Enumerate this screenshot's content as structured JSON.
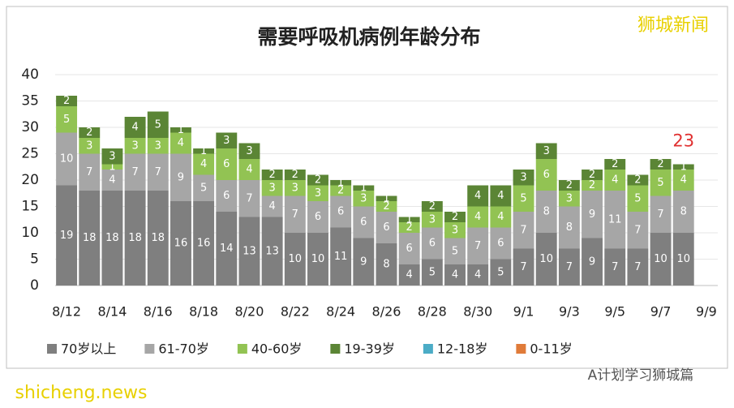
{
  "chart_data": {
    "type": "stacked_bar",
    "title": "需要呼吸机病例年龄分布",
    "categories": [
      "8/12",
      null,
      "8/14",
      null,
      "8/16",
      null,
      "8/18",
      null,
      "8/20",
      null,
      "8/22",
      null,
      "8/24",
      null,
      "8/26",
      null,
      "8/28",
      null,
      "8/30",
      null,
      "9/1",
      null,
      "9/3",
      null,
      "9/5",
      null,
      "9/7",
      null,
      "9/9"
    ],
    "series": [
      {
        "name": "70岁以上",
        "color": "#7f7f7f",
        "values": [
          19,
          18,
          18,
          18,
          18,
          16,
          16,
          14,
          13,
          13,
          10,
          10,
          11,
          9,
          8,
          4,
          5,
          4,
          4,
          5,
          7,
          10,
          7,
          9,
          7,
          7,
          10,
          10,
          null
        ]
      },
      {
        "name": "61-70岁",
        "color": "#a6a6a6",
        "values": [
          10,
          7,
          4,
          7,
          7,
          9,
          5,
          6,
          7,
          4,
          7,
          6,
          6,
          6,
          6,
          6,
          6,
          5,
          7,
          6,
          7,
          8,
          8,
          9,
          11,
          7,
          7,
          8,
          null
        ]
      },
      {
        "name": "40-60岁",
        "color": "#92c353",
        "values": [
          5,
          3,
          1,
          3,
          3,
          4,
          4,
          6,
          4,
          3,
          3,
          3,
          2,
          3,
          2,
          2,
          3,
          3,
          4,
          4,
          5,
          6,
          3,
          2,
          4,
          5,
          5,
          4,
          null
        ]
      },
      {
        "name": "19-39岁",
        "color": "#5b8535",
        "values": [
          2,
          2,
          3,
          4,
          5,
          1,
          1,
          3,
          3,
          2,
          2,
          2,
          1,
          1,
          1,
          1,
          2,
          2,
          4,
          4,
          3,
          3,
          2,
          2,
          2,
          2,
          2,
          1,
          null
        ]
      },
      {
        "name": "12-18岁",
        "color": "#4bacc6",
        "values": [
          0,
          0,
          0,
          0,
          0,
          0,
          0,
          0,
          0,
          0,
          0,
          0,
          0,
          0,
          0,
          0,
          0,
          0,
          0,
          0,
          0,
          0,
          0,
          0,
          0,
          0,
          0,
          0,
          null
        ]
      },
      {
        "name": "0-11岁",
        "color": "#e07b39",
        "values": [
          0,
          0,
          0,
          0,
          0,
          0,
          0,
          0,
          0,
          0,
          0,
          0,
          0,
          0,
          0,
          0,
          0,
          0,
          0,
          0,
          0,
          0,
          0,
          0,
          0,
          0,
          0,
          0,
          null
        ]
      }
    ],
    "ylim": [
      0,
      40
    ],
    "yticks": [
      0,
      5,
      10,
      15,
      20,
      25,
      30,
      35,
      40
    ],
    "grid": true,
    "legend": "bottom",
    "annotation": "23",
    "watermarks": [
      "狮城新闻",
      "A计划学习狮城篇",
      "shicheng.news"
    ]
  }
}
